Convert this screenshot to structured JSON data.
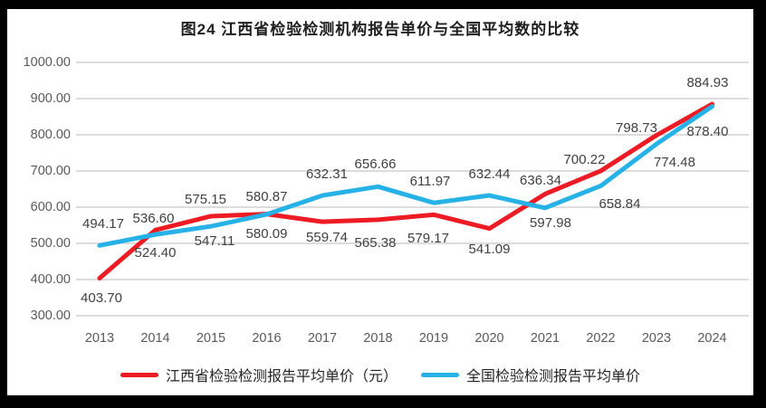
{
  "title": "图24  江西省检验检测机构报告单价与全国平均数的比较",
  "colors": {
    "frame": "#000000",
    "background": "#ffffff",
    "gridline": "#dcdcdc",
    "axis_text": "#595959",
    "data_label_text": "#404040",
    "title_text": "#1f1f1f",
    "series_red": "#ed1b24",
    "series_blue": "#27b2e7"
  },
  "chart_data": {
    "type": "line",
    "title": "图24  江西省检验检测机构报告单价与全国平均数的比较",
    "categories": [
      "2013",
      "2014",
      "2015",
      "2016",
      "2017",
      "2018",
      "2019",
      "2020",
      "2021",
      "2022",
      "2023",
      "2024"
    ],
    "series": [
      {
        "name": "江西省检验检测报告平均单价（元）",
        "color": "#ed1b24",
        "values": [
          403.7,
          536.6,
          575.15,
          580.87,
          559.74,
          565.38,
          579.17,
          541.09,
          636.34,
          700.22,
          798.73,
          884.93
        ],
        "label_offsets": [
          [
            2,
            22
          ],
          [
            -2,
            -12
          ],
          [
            -6,
            -18
          ],
          [
            0,
            -19
          ],
          [
            5,
            18
          ],
          [
            -3,
            26
          ],
          [
            -6,
            27
          ],
          [
            0,
            23
          ],
          [
            -5,
            -14
          ],
          [
            -18,
            -12
          ],
          [
            -22,
            -8
          ],
          [
            -5,
            -23
          ]
        ]
      },
      {
        "name": "全国检验检测报告平均单价",
        "color": "#27b2e7",
        "values": [
          494.17,
          524.4,
          547.11,
          580.09,
          632.31,
          656.66,
          611.97,
          632.44,
          597.98,
          658.84,
          774.48,
          878.4
        ],
        "label_offsets": [
          [
            4,
            -23
          ],
          [
            0,
            21
          ],
          [
            4,
            17
          ],
          [
            0,
            22
          ],
          [
            5,
            -23
          ],
          [
            -3,
            -24
          ],
          [
            -4,
            -23
          ],
          [
            0,
            -23
          ],
          [
            6,
            17
          ],
          [
            21,
            21
          ],
          [
            20,
            21
          ],
          [
            -5,
            28
          ]
        ]
      }
    ],
    "xlabel": "",
    "ylabel": "",
    "ylim": [
      300,
      1000
    ],
    "ytick_step": 100,
    "yticks": [
      "1000.00",
      "900.00",
      "800.00",
      "700.00",
      "600.00",
      "500.00",
      "400.00",
      "300.00"
    ],
    "value_decimals": 2,
    "grid": "horizontal",
    "legend_position": "bottom"
  }
}
